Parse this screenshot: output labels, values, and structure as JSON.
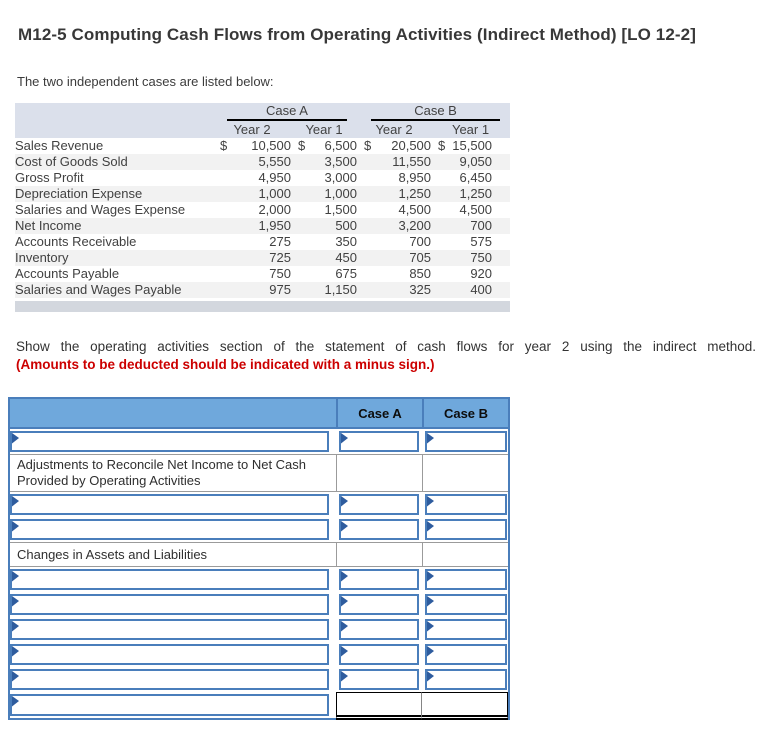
{
  "title": "M12-5 Computing Cash Flows from Operating Activities (Indirect Method) [LO 12-2]",
  "intro": "The two independent cases are listed below:",
  "cases_table": {
    "groups": [
      "Case A",
      "Case B"
    ],
    "year_headers": [
      "Year 2",
      "Year 1",
      "Year 2",
      "Year 1"
    ],
    "rows": [
      {
        "label": "Sales Revenue",
        "values": [
          "10,500",
          "6,500",
          "20,500",
          "15,500"
        ],
        "currency": true
      },
      {
        "label": "Cost of Goods Sold",
        "values": [
          "5,550",
          "3,500",
          "11,550",
          "9,050"
        ],
        "currency": false
      },
      {
        "label": "Gross Profit",
        "values": [
          "4,950",
          "3,000",
          "8,950",
          "6,450"
        ],
        "currency": false
      },
      {
        "label": "Depreciation Expense",
        "values": [
          "1,000",
          "1,000",
          "1,250",
          "1,250"
        ],
        "currency": false
      },
      {
        "label": "Salaries and Wages Expense",
        "values": [
          "2,000",
          "1,500",
          "4,500",
          "4,500"
        ],
        "currency": false
      },
      {
        "label": "Net Income",
        "values": [
          "1,950",
          "500",
          "3,200",
          "700"
        ],
        "currency": false
      },
      {
        "label": "Accounts Receivable",
        "values": [
          "275",
          "350",
          "700",
          "575"
        ],
        "currency": false
      },
      {
        "label": "Inventory",
        "values": [
          "725",
          "450",
          "705",
          "750"
        ],
        "currency": false
      },
      {
        "label": "Accounts Payable",
        "values": [
          "750",
          "675",
          "850",
          "920"
        ],
        "currency": false
      },
      {
        "label": "Salaries and Wages Payable",
        "values": [
          "975",
          "1,150",
          "325",
          "400"
        ],
        "currency": false
      }
    ],
    "currency_symbol": "$"
  },
  "instructions": {
    "line1": "Show the operating activities section of the statement of cash flows for year 2 using the indirect method.",
    "line2": "(Amounts to be deducted should be indicated with a minus sign.)"
  },
  "answer_table": {
    "columns": [
      "Case A",
      "Case B"
    ],
    "rows": [
      {
        "type": "input"
      },
      {
        "type": "section",
        "text": "Adjustments to Reconcile Net Income to Net Cash Provided by Operating Activities"
      },
      {
        "type": "input"
      },
      {
        "type": "input"
      },
      {
        "type": "section",
        "text": "Changes in Assets and Liabilities"
      },
      {
        "type": "input"
      },
      {
        "type": "input"
      },
      {
        "type": "input"
      },
      {
        "type": "input"
      },
      {
        "type": "input"
      },
      {
        "type": "total"
      }
    ],
    "input_placeholder": "",
    "input_value": ""
  },
  "colors": {
    "answer_header_bg": "#6FA8DC",
    "answer_border": "#4A7EBB",
    "input_marker": "#2E5C9E",
    "cases_header_bg": "#DBE0EB",
    "row_stripe": "#F2F2F2",
    "scrollbar_gray": "#D3D7DE",
    "warning_red": "#CC0000"
  }
}
